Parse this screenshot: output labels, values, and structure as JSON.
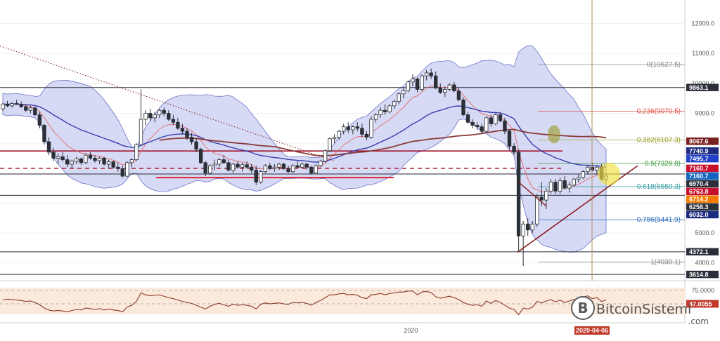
{
  "chart_data": {
    "type": "candlestick",
    "title": "",
    "xlabel": "",
    "ylabel": "",
    "ylim": [
      3500,
      12600
    ],
    "x_tick_labels": [
      {
        "label": "2020",
        "index": 88
      }
    ],
    "y_ticks": [
      4000.0,
      5000.0,
      6000.0,
      7000.0,
      8000.0,
      9000.0,
      10000.0,
      11000.0,
      12000.0
    ],
    "y_tick_labels": [
      "4000.0",
      "5000.0",
      "6000.0",
      "7000.0",
      "8000.0",
      "9000.0",
      "10000.0",
      "11000.0",
      "12000.0"
    ],
    "current_date_label": "2020-04-06",
    "price_badges": [
      {
        "value": 9863.1,
        "text": "9863.1",
        "color": "#2a2e39"
      },
      {
        "value": 8067.6,
        "text": "8067.6",
        "color": "#7a1f1f"
      },
      {
        "value": 7740.9,
        "text": "7740.9",
        "color": "#1c2a80"
      },
      {
        "value": 7495.7,
        "text": "7495.7",
        "color": "#2341c8"
      },
      {
        "value": 7160.7,
        "text": "7160.7",
        "color": "#c8102e"
      },
      {
        "value": 7160.7,
        "text": "7160.7",
        "color": "#1565c0"
      },
      {
        "value": 6970.4,
        "text": "6970.4",
        "color": "#2a2e39"
      },
      {
        "value": 6763.8,
        "text": "6763.8",
        "color": "#c8102e"
      },
      {
        "value": 6714.2,
        "text": "6714.2",
        "color": "#f57c00"
      },
      {
        "value": 6258.3,
        "text": "6258.3",
        "color": "#2a2e39"
      },
      {
        "value": 6032.0,
        "text": "6032.0",
        "color": "#1c2a80"
      },
      {
        "value": 4372.1,
        "text": "4372.1",
        "color": "#2a2e39"
      },
      {
        "value": 3614.8,
        "text": "3614.8",
        "color": "#2a2e39"
      }
    ],
    "fib_levels": [
      {
        "ratio": "0",
        "value": 10627.5,
        "text": "0(10627.5)",
        "color": "#888888"
      },
      {
        "ratio": "0.236",
        "value": 9070.5,
        "text": "0.236(9070.5)",
        "color": "#e0524c"
      },
      {
        "ratio": "0.382",
        "value": 8107.3,
        "text": "0.382(8107.3)",
        "color": "#9aa02a"
      },
      {
        "ratio": "0.5",
        "value": 7328.8,
        "text": "0.5(7328.8)",
        "color": "#3b9a3b"
      },
      {
        "ratio": "0.618",
        "value": 6550.3,
        "text": "0.618(6550.3)",
        "color": "#2f9aa0"
      },
      {
        "ratio": "0.786",
        "value": 5441.9,
        "text": "0.786(5441.9)",
        "color": "#2f6fc0"
      },
      {
        "ratio": "1",
        "value": 4030.1,
        "text": "1(4030.1)",
        "color": "#888888"
      }
    ],
    "horizontal_lines": [
      {
        "value": 9863.1,
        "color": "#2a2e39",
        "style": "solid"
      },
      {
        "value": 7740.9,
        "color": "#a0142a",
        "style": "solid"
      },
      {
        "value": 7160.7,
        "color": "#b0182e",
        "style": "dashed"
      },
      {
        "value": 6970.4,
        "color": "#2a2e39",
        "style": "solid"
      },
      {
        "value": 6258.3,
        "color": "#2a2e39",
        "style": "solid"
      },
      {
        "value": 4372.1,
        "color": "#2a2e39",
        "style": "solid"
      },
      {
        "value": 3614.8,
        "color": "#2a2e39",
        "style": "solid"
      }
    ],
    "candles": [
      [
        0,
        9150,
        9350,
        9080,
        9310
      ],
      [
        1,
        9310,
        9420,
        9200,
        9250
      ],
      [
        2,
        9250,
        9380,
        9190,
        9330
      ],
      [
        3,
        9330,
        9450,
        9280,
        9300
      ],
      [
        4,
        9300,
        9400,
        9180,
        9220
      ],
      [
        5,
        9220,
        9300,
        9050,
        9100
      ],
      [
        6,
        9100,
        9250,
        9000,
        9180
      ],
      [
        7,
        9180,
        9220,
        8900,
        8950
      ],
      [
        8,
        8950,
        9050,
        8500,
        8600
      ],
      [
        9,
        8600,
        8650,
        7950,
        8050
      ],
      [
        10,
        8050,
        8200,
        7600,
        7700
      ],
      [
        11,
        7700,
        7850,
        7400,
        7500
      ],
      [
        12,
        7500,
        7650,
        7300,
        7550
      ],
      [
        13,
        7550,
        7700,
        7380,
        7450
      ],
      [
        14,
        7450,
        7600,
        7200,
        7300
      ],
      [
        15,
        7300,
        7450,
        7150,
        7400
      ],
      [
        16,
        7400,
        7550,
        7300,
        7480
      ],
      [
        17,
        7480,
        7520,
        7280,
        7350
      ],
      [
        18,
        7350,
        7650,
        7300,
        7600
      ],
      [
        19,
        7600,
        7700,
        7450,
        7500
      ],
      [
        20,
        7500,
        7600,
        7350,
        7420
      ],
      [
        21,
        7420,
        7550,
        7300,
        7500
      ],
      [
        22,
        7500,
        7550,
        7250,
        7300
      ],
      [
        23,
        7300,
        7450,
        7150,
        7380
      ],
      [
        24,
        7380,
        7420,
        7150,
        7200
      ],
      [
        25,
        7200,
        7350,
        7050,
        7150
      ],
      [
        26,
        7150,
        7250,
        6850,
        6900
      ],
      [
        27,
        6900,
        7400,
        6870,
        7350
      ],
      [
        28,
        7350,
        7500,
        7200,
        7450
      ],
      [
        29,
        7450,
        8000,
        7400,
        7950
      ],
      [
        30,
        7950,
        9800,
        7900,
        8800
      ],
      [
        31,
        8800,
        9100,
        8600,
        9000
      ],
      [
        32,
        9000,
        9150,
        8750,
        8850
      ],
      [
        33,
        8850,
        9050,
        8700,
        8950
      ],
      [
        34,
        8950,
        9150,
        8850,
        9100
      ],
      [
        35,
        9100,
        9200,
        8900,
        9000
      ],
      [
        36,
        9000,
        9100,
        8750,
        8800
      ],
      [
        37,
        8800,
        8950,
        8600,
        8700
      ],
      [
        38,
        8700,
        8850,
        8450,
        8500
      ],
      [
        39,
        8500,
        8650,
        8300,
        8400
      ],
      [
        40,
        8400,
        8500,
        8100,
        8200
      ],
      [
        41,
        8200,
        8350,
        7950,
        8050
      ],
      [
        42,
        8050,
        8150,
        7700,
        7800
      ],
      [
        43,
        7800,
        7850,
        7300,
        7350
      ],
      [
        44,
        7350,
        7400,
        6900,
        7000
      ],
      [
        45,
        7000,
        7300,
        6950,
        7250
      ],
      [
        46,
        7250,
        7450,
        7100,
        7300
      ],
      [
        47,
        7300,
        7500,
        7200,
        7450
      ],
      [
        48,
        7450,
        7600,
        7300,
        7350
      ],
      [
        49,
        7350,
        7450,
        7050,
        7100
      ],
      [
        50,
        7100,
        7350,
        7000,
        7300
      ],
      [
        51,
        7300,
        7400,
        7150,
        7200
      ],
      [
        52,
        7200,
        7350,
        7050,
        7280
      ],
      [
        53,
        7280,
        7400,
        7150,
        7200
      ],
      [
        54,
        7200,
        7300,
        7000,
        7100
      ],
      [
        55,
        7100,
        7250,
        6600,
        6700
      ],
      [
        56,
        6700,
        7100,
        6650,
        7050
      ],
      [
        57,
        7050,
        7300,
        7000,
        7250
      ],
      [
        58,
        7250,
        7350,
        7100,
        7150
      ],
      [
        59,
        7150,
        7300,
        7050,
        7200
      ],
      [
        60,
        7200,
        7350,
        7100,
        7300
      ],
      [
        61,
        7300,
        7350,
        7100,
        7150
      ],
      [
        62,
        7150,
        7250,
        7000,
        7050
      ],
      [
        63,
        7050,
        7300,
        7000,
        7250
      ],
      [
        64,
        7250,
        7400,
        7150,
        7200
      ],
      [
        65,
        7200,
        7350,
        7150,
        7300
      ],
      [
        66,
        7300,
        7350,
        7100,
        7200
      ],
      [
        67,
        7200,
        7250,
        6950,
        7000
      ],
      [
        68,
        7000,
        7300,
        6980,
        7250
      ],
      [
        69,
        7250,
        7450,
        7200,
        7400
      ],
      [
        70,
        7400,
        7800,
        7350,
        7750
      ],
      [
        71,
        7750,
        8200,
        7700,
        8150
      ],
      [
        72,
        8150,
        8300,
        8000,
        8200
      ],
      [
        73,
        8200,
        8450,
        8100,
        8400
      ],
      [
        74,
        8400,
        8650,
        8300,
        8550
      ],
      [
        75,
        8550,
        8700,
        8350,
        8450
      ],
      [
        76,
        8450,
        8600,
        8300,
        8550
      ],
      [
        77,
        8550,
        8700,
        8400,
        8500
      ],
      [
        78,
        8500,
        8650,
        8200,
        8300
      ],
      [
        79,
        8300,
        8400,
        8100,
        8200
      ],
      [
        80,
        8200,
        8900,
        8150,
        8800
      ],
      [
        81,
        8800,
        9000,
        8700,
        8950
      ],
      [
        82,
        8950,
        9200,
        8850,
        9100
      ],
      [
        83,
        9100,
        9300,
        8950,
        9050
      ],
      [
        84,
        9050,
        9300,
        9000,
        9250
      ],
      [
        85,
        9250,
        9450,
        9150,
        9400
      ],
      [
        86,
        9400,
        9700,
        9300,
        9650
      ],
      [
        87,
        9650,
        9850,
        9500,
        9750
      ],
      [
        88,
        9750,
        10100,
        9700,
        10050
      ],
      [
        89,
        10050,
        10300,
        9900,
        10150
      ],
      [
        90,
        10150,
        10200,
        9700,
        9800
      ],
      [
        91,
        9800,
        10300,
        9750,
        10250
      ],
      [
        92,
        10250,
        10450,
        10100,
        10350
      ],
      [
        93,
        10350,
        10500,
        10150,
        10250
      ],
      [
        94,
        10250,
        10400,
        9800,
        9850
      ],
      [
        95,
        9850,
        10000,
        9650,
        9700
      ],
      [
        96,
        9700,
        9900,
        9550,
        9800
      ],
      [
        97,
        9800,
        10000,
        9750,
        9950
      ],
      [
        98,
        9950,
        10050,
        9700,
        9750
      ],
      [
        99,
        9750,
        9850,
        9400,
        9450
      ],
      [
        100,
        9450,
        9550,
        8900,
        8950
      ],
      [
        101,
        8950,
        9050,
        8650,
        8700
      ],
      [
        102,
        8700,
        8800,
        8500,
        8600
      ],
      [
        103,
        8600,
        8700,
        8450,
        8550
      ],
      [
        104,
        8550,
        8650,
        8300,
        8400
      ],
      [
        105,
        8400,
        8900,
        8350,
        8850
      ],
      [
        106,
        8850,
        8950,
        8550,
        8650
      ],
      [
        107,
        8650,
        9000,
        8600,
        8950
      ],
      [
        108,
        8950,
        9050,
        8700,
        8750
      ],
      [
        109,
        8750,
        8850,
        8300,
        8400
      ],
      [
        110,
        8400,
        8450,
        7800,
        7900
      ],
      [
        111,
        7900,
        8000,
        7600,
        7700
      ],
      [
        112,
        7700,
        7800,
        4400,
        4900
      ],
      [
        113,
        4900,
        5400,
        3900,
        5300
      ],
      [
        114,
        5300,
        5500,
        4900,
        5100
      ],
      [
        115,
        5100,
        5400,
        5000,
        5300
      ],
      [
        116,
        5300,
        6300,
        5200,
        6200
      ],
      [
        117,
        6200,
        6700,
        5900,
        6100
      ],
      [
        118,
        6100,
        6500,
        5800,
        6400
      ],
      [
        119,
        6400,
        6800,
        6300,
        6700
      ],
      [
        120,
        6700,
        6800,
        6300,
        6400
      ],
      [
        121,
        6400,
        6850,
        6300,
        6750
      ],
      [
        122,
        6750,
        6900,
        6450,
        6500
      ],
      [
        123,
        6500,
        6700,
        6350,
        6600
      ],
      [
        124,
        6600,
        6850,
        6550,
        6800
      ],
      [
        125,
        6800,
        6950,
        6700,
        6850
      ],
      [
        126,
        6850,
        7100,
        6800,
        7050
      ],
      [
        127,
        7050,
        7250,
        6950,
        7200
      ],
      [
        128,
        7200,
        7350,
        7050,
        7100
      ],
      [
        129,
        7100,
        7250,
        6950,
        7200
      ],
      [
        130,
        7200,
        7300,
        6750,
        6800
      ],
      [
        131,
        6800,
        6950,
        6700,
        6900
      ]
    ],
    "rsi": {
      "levels": [
        75.0,
        47.0055
      ],
      "level_labels": [
        "75.0000",
        "47.0055"
      ],
      "values": [
        55,
        57,
        56,
        55,
        54,
        52,
        53,
        50,
        45,
        38,
        34,
        32,
        33,
        32,
        30,
        33,
        35,
        34,
        38,
        37,
        35,
        37,
        34,
        36,
        34,
        33,
        30,
        40,
        44,
        52,
        70,
        66,
        64,
        65,
        66,
        63,
        60,
        58,
        55,
        52,
        50,
        48,
        44,
        40,
        36,
        42,
        46,
        48,
        45,
        42,
        46,
        44,
        45,
        44,
        42,
        36,
        46,
        49,
        47,
        48,
        49,
        47,
        46,
        50,
        49,
        50,
        48,
        44,
        50,
        54,
        60,
        66,
        66,
        68,
        69,
        66,
        67,
        65,
        60,
        58,
        66,
        67,
        69,
        66,
        69,
        70,
        72,
        72,
        74,
        74,
        66,
        72,
        73,
        71,
        62,
        59,
        61,
        63,
        60,
        56,
        50,
        46,
        44,
        45,
        42,
        53,
        48,
        54,
        50,
        44,
        38,
        35,
        24,
        38,
        36,
        40,
        52,
        49,
        53,
        56,
        51,
        55,
        50,
        53,
        56,
        58,
        61,
        64,
        58,
        60,
        52,
        55
      ]
    }
  },
  "watermark": {
    "brand": "BitcoinSistemi",
    "suffix": ".com"
  }
}
